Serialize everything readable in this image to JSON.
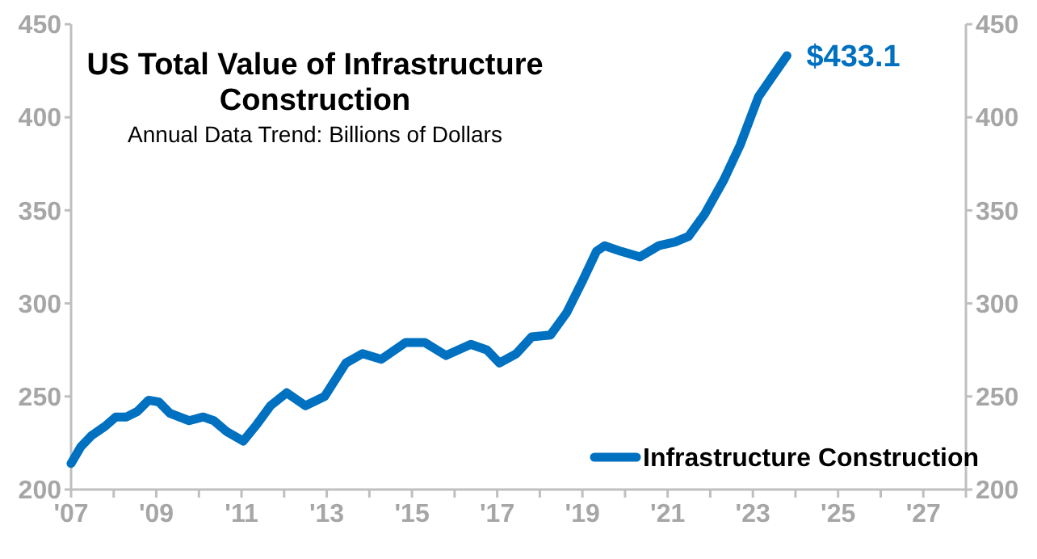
{
  "chart_data": {
    "type": "line",
    "title": "US Total Value of Infrastructure Construction",
    "subtitle": "Annual Data Trend: Billions of Dollars",
    "x": [
      2007,
      2007.23,
      2007.48,
      2007.8,
      2008.05,
      2008.3,
      2008.56,
      2008.82,
      2009.06,
      2009.32,
      2009.77,
      2010.1,
      2010.35,
      2010.66,
      2011.04,
      2011.36,
      2011.68,
      2012.06,
      2012.5,
      2012.95,
      2013.45,
      2013.84,
      2014.28,
      2014.85,
      2015.3,
      2015.8,
      2016.38,
      2016.76,
      2017.05,
      2017.45,
      2017.81,
      2018.25,
      2018.63,
      2019.0,
      2019.33,
      2019.52,
      2019.9,
      2020.35,
      2020.79,
      2021.17,
      2021.49,
      2021.87,
      2022.31,
      2022.7,
      2023.13,
      2023.43,
      2023.8
    ],
    "series": [
      {
        "name": "Infrastructure Construction",
        "color": "#0070c0",
        "values": [
          214,
          223,
          229,
          234,
          239,
          239,
          242,
          248,
          247,
          241,
          237,
          239,
          237,
          231,
          226,
          235,
          245,
          252,
          245,
          250,
          268,
          273,
          270,
          279,
          279,
          272,
          278,
          275,
          268,
          273,
          282,
          283,
          295,
          312,
          328,
          331,
          328,
          325,
          331,
          333,
          336,
          348,
          366,
          385,
          411,
          421,
          433.1
        ]
      }
    ],
    "annotations": [
      {
        "text": "$433.1",
        "x": 2023.8,
        "y": 433.1
      }
    ],
    "xlim": [
      2007,
      2028
    ],
    "xticks": [
      {
        "value": 2007,
        "label": "'07"
      },
      {
        "value": 2008,
        "label": null
      },
      {
        "value": 2009,
        "label": "'09"
      },
      {
        "value": 2010,
        "label": null
      },
      {
        "value": 2011,
        "label": "'11"
      },
      {
        "value": 2012,
        "label": null
      },
      {
        "value": 2013,
        "label": "'13"
      },
      {
        "value": 2014,
        "label": null
      },
      {
        "value": 2015,
        "label": "'15"
      },
      {
        "value": 2016,
        "label": null
      },
      {
        "value": 2017,
        "label": "'17"
      },
      {
        "value": 2018,
        "label": null
      },
      {
        "value": 2019,
        "label": "'19"
      },
      {
        "value": 2020,
        "label": null
      },
      {
        "value": 2021,
        "label": "'21"
      },
      {
        "value": 2022,
        "label": null
      },
      {
        "value": 2023,
        "label": "'23"
      },
      {
        "value": 2024,
        "label": null
      },
      {
        "value": 2025,
        "label": "'25"
      },
      {
        "value": 2026,
        "label": null
      },
      {
        "value": 2027,
        "label": "'27"
      },
      {
        "value": 2028,
        "label": null
      }
    ],
    "ylim": [
      200,
      450
    ],
    "yticks": [
      200,
      250,
      300,
      350,
      400,
      450
    ],
    "y2lim": [
      200,
      450
    ],
    "y2ticks": [
      200,
      250,
      300,
      350,
      400,
      450
    ],
    "grid": false,
    "legend": "bottom right",
    "line_style": "solid",
    "marker": "none"
  }
}
